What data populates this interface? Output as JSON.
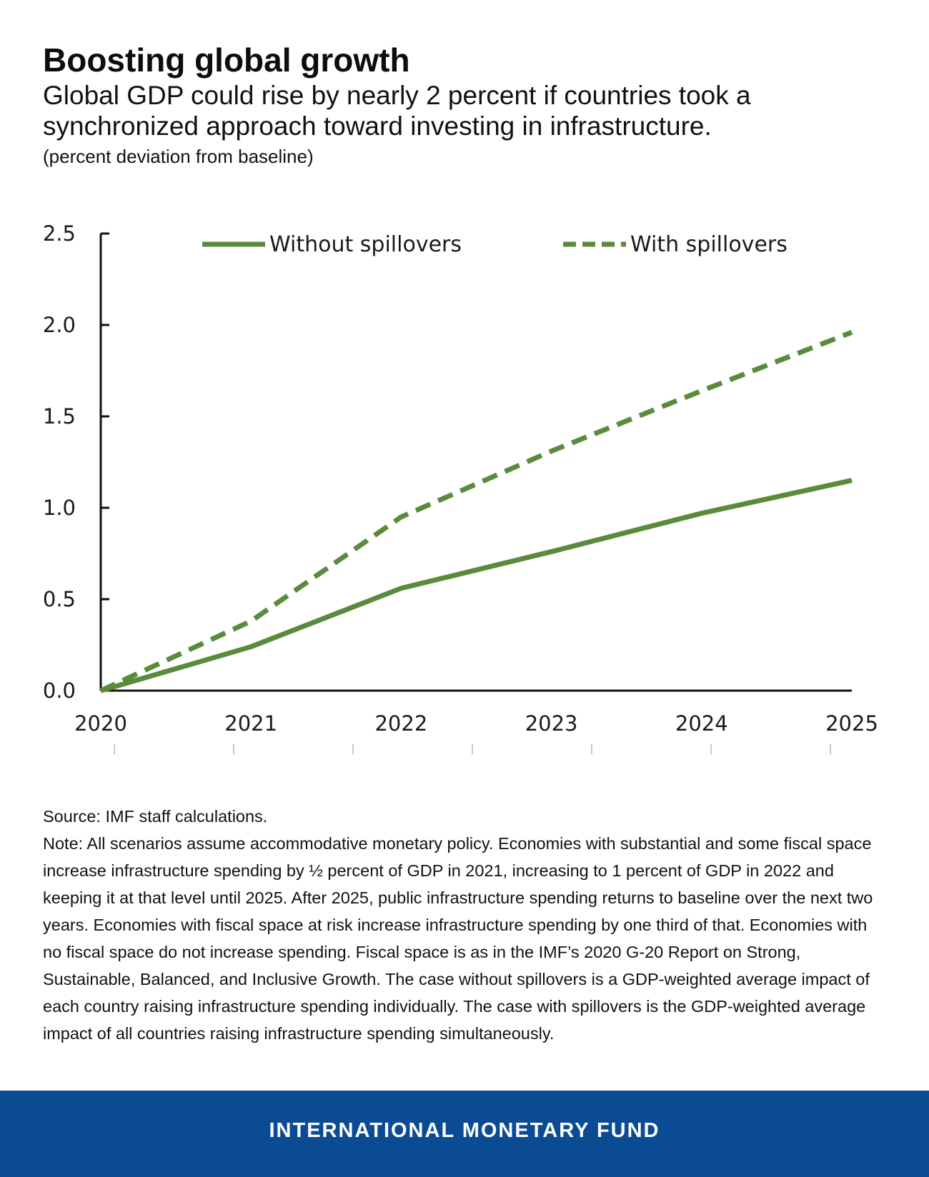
{
  "header": {
    "title": "Boosting global growth",
    "subtitle": "Global GDP could rise by nearly 2 percent if countries took a synchronized approach toward investing in infrastructure.",
    "units": "(percent deviation from baseline)"
  },
  "chart_data": {
    "type": "line",
    "title": "Boosting global growth",
    "subtitle": "Global GDP could rise by nearly 2 percent if countries took a synchronized approach toward investing in infrastructure.",
    "xlabel": "",
    "ylabel": "(percent deviation from baseline)",
    "x": [
      "2020",
      "2021",
      "2022",
      "2023",
      "2024",
      "2025"
    ],
    "ylim": [
      0,
      2.5
    ],
    "yticks": [
      "0.0",
      "0.5",
      "1.0",
      "1.5",
      "2.0",
      "2.5"
    ],
    "grid": false,
    "legend_position": "top",
    "series": [
      {
        "name": "Without spillovers",
        "style": "solid",
        "color": "#5a8b3c",
        "values": [
          0.0,
          0.24,
          0.56,
          0.76,
          0.97,
          1.15
        ]
      },
      {
        "name": "With spillovers",
        "style": "dashed",
        "color": "#5a8b3c",
        "values": [
          0.0,
          0.38,
          0.95,
          1.31,
          1.64,
          1.96
        ]
      }
    ]
  },
  "notes": {
    "source": "Source: IMF staff calculations.",
    "note": "Note: All scenarios assume accommodative monetary policy. Economies with substantial and some fiscal space increase infrastructure spending by ½ percent of GDP in 2021, increasing to 1 percent of GDP in 2022 and keeping it at that level until 2025. After 2025, public infrastructure spending returns to baseline over the next two years. Economies with fiscal space at risk increase infrastructure spending by one third of that. Economies with no fiscal space do not increase spending. Fiscal space is as in the IMF’s 2020 G-20 Report on Strong, Sustainable, Balanced, and Inclusive Growth. The case without spillovers is a GDP-weighted average impact of each country raising infrastructure spending individually. The case with spillovers is the GDP-weighted average impact of all countries raising infrastructure spending simultaneously."
  },
  "footer": {
    "brand": "INTERNATIONAL MONETARY FUND",
    "background_color": "#0a4b93"
  }
}
